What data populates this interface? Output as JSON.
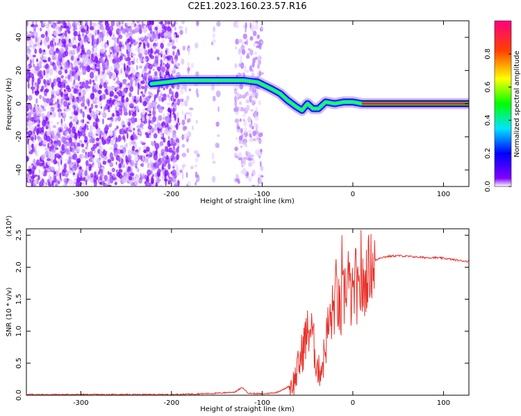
{
  "title": "C2E1.2023.160.23.57.R16",
  "chart_data": [
    {
      "type": "heatmap",
      "xlabel": "Height of straight line (km)",
      "ylabel": "Frequency (Hz)",
      "xlim": [
        -360,
        128
      ],
      "ylim": [
        -50,
        50
      ],
      "xticks": [
        -300,
        -200,
        -100,
        0,
        100
      ],
      "yticks": [
        -40,
        -20,
        0,
        20,
        40
      ],
      "colorbar": {
        "label": "Normalized spectral amplitude",
        "ticks": [
          0.0,
          0.2,
          0.4,
          0.6,
          0.8
        ],
        "range": [
          0,
          1
        ]
      },
      "noise_regions": [
        {
          "x": [
            -360,
            -192
          ],
          "density": 1.0
        },
        {
          "x": [
            -190,
            -170
          ],
          "density": 0.25
        },
        {
          "x": [
            -155,
            -148
          ],
          "density": 0.2
        },
        {
          "x": [
            -130,
            -100
          ],
          "density": 0.55
        }
      ],
      "ridge": [
        {
          "x": -222,
          "y": 12
        },
        {
          "x": -190,
          "y": 14
        },
        {
          "x": -170,
          "y": 14
        },
        {
          "x": -140,
          "y": 14
        },
        {
          "x": -120,
          "y": 14
        },
        {
          "x": -105,
          "y": 13
        },
        {
          "x": -90,
          "y": 9
        },
        {
          "x": -80,
          "y": 6
        },
        {
          "x": -72,
          "y": 2
        },
        {
          "x": -62,
          "y": -2
        },
        {
          "x": -56,
          "y": -4
        },
        {
          "x": -50,
          "y": 0
        },
        {
          "x": -44,
          "y": -3
        },
        {
          "x": -38,
          "y": -3
        },
        {
          "x": -30,
          "y": 1
        },
        {
          "x": -20,
          "y": 0
        },
        {
          "x": -10,
          "y": 1
        },
        {
          "x": 0,
          "y": 1
        },
        {
          "x": 10,
          "y": 0
        },
        {
          "x": 128,
          "y": 0
        }
      ],
      "stable_line": {
        "x": [
          10,
          128
        ],
        "y": 0
      }
    },
    {
      "type": "line",
      "xlabel": "Height of straight line (km)",
      "ylabel": "SNR (10 * v/v)",
      "yunit": "(x10⁴)",
      "xlim": [
        -360,
        128
      ],
      "ylim": [
        0,
        2.6
      ],
      "xticks": [
        -300,
        -200,
        -100,
        0,
        100
      ],
      "yticks": [
        0.0,
        0.5,
        1.0,
        1.5,
        2.0,
        2.5
      ],
      "ytick_labels": [
        "0.0",
        "0.5",
        "1.0",
        "1.5",
        "2.0",
        "2.5"
      ],
      "series_color": "#e8312a",
      "x": [
        -360,
        -300,
        -200,
        -150,
        -130,
        -122,
        -115,
        -100,
        -85,
        -75,
        -65,
        -58,
        -52,
        -47,
        -42,
        -38,
        -33,
        -28,
        -22,
        -18,
        -14,
        -10,
        -7,
        -3,
        0,
        3,
        6,
        9,
        12,
        16,
        20,
        25,
        30,
        40,
        50,
        60,
        70,
        80,
        90,
        100,
        110,
        120,
        128
      ],
      "y": [
        0.01,
        0.01,
        0.01,
        0.03,
        0.05,
        0.12,
        0.03,
        0.02,
        0.04,
        0.1,
        0.2,
        0.55,
        0.9,
        1.05,
        0.7,
        0.35,
        0.5,
        1.0,
        1.3,
        1.65,
        1.2,
        1.5,
        1.8,
        1.6,
        1.45,
        1.9,
        1.4,
        1.7,
        1.6,
        1.95,
        2.02,
        2.1,
        2.15,
        2.17,
        2.18,
        2.17,
        2.16,
        2.15,
        2.15,
        2.14,
        2.12,
        2.1,
        2.09
      ],
      "spikes": [
        {
          "x": -12,
          "y": 2.5
        },
        {
          "x": -5,
          "y": 2.25
        },
        {
          "x": 9,
          "y": 2.58
        },
        {
          "x": 3,
          "y": 2.3
        },
        {
          "x": -45,
          "y": 1.15
        }
      ]
    }
  ]
}
